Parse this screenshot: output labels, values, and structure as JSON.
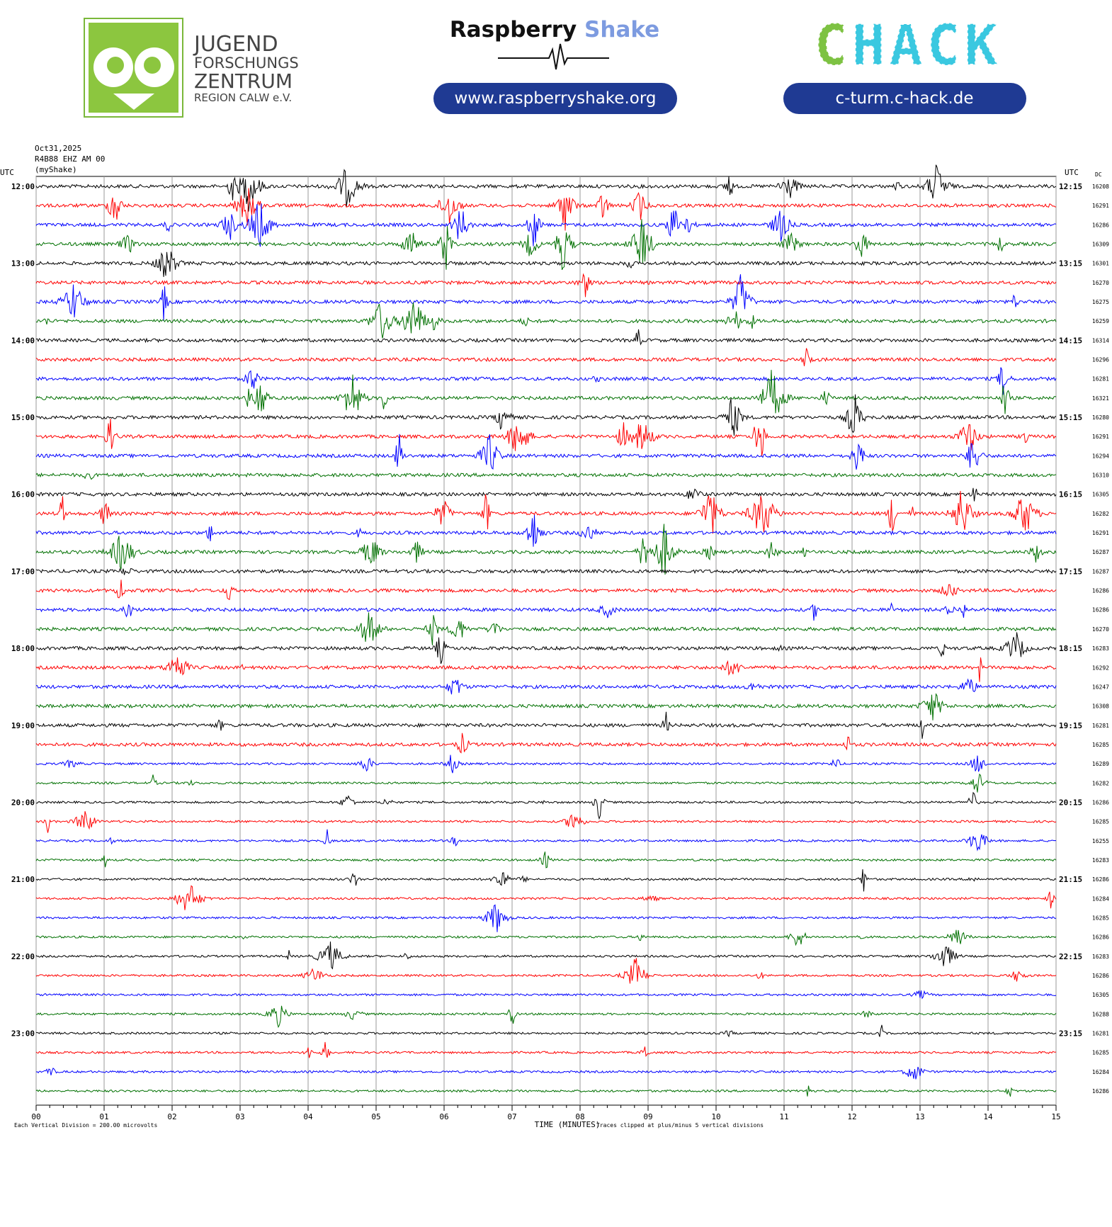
{
  "header": {
    "jfz": [
      "JUGEND",
      "FORSCHUNGS",
      "ZENTRUM",
      "REGION CALW e.V."
    ],
    "rs_brand": [
      "Raspberry",
      "Shake"
    ],
    "rs_url": "www.raspberryshake.org",
    "chack": [
      "C",
      "HACK"
    ],
    "chack_url": "c-turm.c-hack.de"
  },
  "chart_data": {
    "type": "helicorder",
    "date": "Oct31,2025",
    "station": "R4B88 EHZ AM 00",
    "network": "(myShake)",
    "left_axis": "UTC",
    "right_axis": "UTC",
    "dc_label": "DC",
    "left_labels": [
      "12:00",
      "13:00",
      "14:00",
      "15:00",
      "16:00",
      "17:00",
      "18:00",
      "19:00",
      "20:00",
      "21:00",
      "22:00",
      "23:00"
    ],
    "right_labels": [
      "12:15",
      "13:15",
      "14:15",
      "15:15",
      "16:15",
      "17:15",
      "18:15",
      "19:15",
      "20:15",
      "21:15",
      "22:15",
      "23:15"
    ],
    "dc_values": [
      16208,
      16291,
      16286,
      16309,
      16301,
      16270,
      16275,
      16259,
      16314,
      16296,
      16281,
      16321,
      16280,
      16291,
      16294,
      16310,
      16305,
      16282,
      16291,
      16287,
      16287,
      16286,
      16286,
      16270,
      16283,
      16292,
      16247,
      16308,
      16281,
      16285,
      16289,
      16282,
      16286,
      16285,
      16255,
      16283,
      16286,
      16284,
      16285,
      16286,
      16283,
      16286,
      16305,
      16288,
      16281,
      16285,
      16284,
      16286
    ],
    "colors": [
      "#000000",
      "#ff0000",
      "#0000ff",
      "#007000"
    ],
    "xlim": [
      0,
      15
    ],
    "xticks": [
      {
        "value": 0,
        "label": "00"
      },
      {
        "value": 1,
        "label": "01"
      },
      {
        "value": 2,
        "label": "02"
      },
      {
        "value": 3,
        "label": "03"
      },
      {
        "value": 4,
        "label": "04"
      },
      {
        "value": 5,
        "label": "05"
      },
      {
        "value": 6,
        "label": "06"
      },
      {
        "value": 7,
        "label": "07"
      },
      {
        "value": 8,
        "label": "08"
      },
      {
        "value": 9,
        "label": "09"
      },
      {
        "value": 10,
        "label": "10"
      },
      {
        "value": 11,
        "label": "11"
      },
      {
        "value": 12,
        "label": "12"
      },
      {
        "value": 13,
        "label": "13"
      },
      {
        "value": 14,
        "label": "14"
      },
      {
        "value": 15,
        "label": "15"
      }
    ],
    "xlabel": "TIME (MINUTES)",
    "scale_note": "Each Vertical Division =  200.00 microvolts",
    "clip_note": "Traces clipped at plus/minus 5 vertical divisions"
  }
}
